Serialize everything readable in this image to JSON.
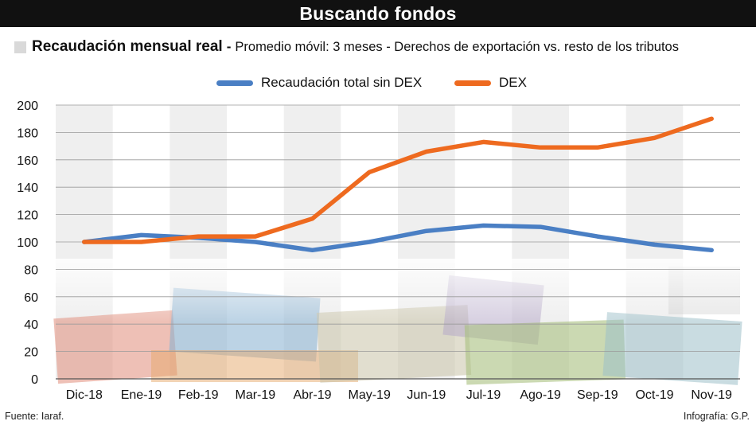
{
  "header": {
    "title": "Buscando fondos"
  },
  "subtitle": {
    "bold": "Recaudación mensual real",
    "separator": "-",
    "rest": "Promedio móvil: 3 meses - Derechos de exportación vs. resto de los tributos"
  },
  "footer": {
    "source": "Fuente: Iaraf.",
    "credit": "Infografía: G.P."
  },
  "colors": {
    "total_line": "#4a7fc4",
    "dex_line": "#ee6a1f",
    "column_shade": "#efefef",
    "grid": "#9a9a9a"
  },
  "chart_data": {
    "type": "line",
    "title": "Recaudación mensual real",
    "categories": [
      "Dic-18",
      "Ene-19",
      "Feb-19",
      "Mar-19",
      "Abr-19",
      "May-19",
      "Jun-19",
      "Jul-19",
      "Ago-19",
      "Sep-19",
      "Oct-19",
      "Nov-19"
    ],
    "series": [
      {
        "name": "Recaudación total sin DEX",
        "color": "#4a7fc4",
        "values": [
          100,
          105,
          103,
          100,
          94,
          100,
          108,
          112,
          111,
          104,
          98,
          94
        ]
      },
      {
        "name": "DEX",
        "color": "#ee6a1f",
        "values": [
          100,
          100,
          104,
          104,
          117,
          151,
          166,
          173,
          169,
          169,
          176,
          190
        ]
      }
    ],
    "ylim": [
      0,
      200
    ],
    "yticks": [
      0,
      20,
      40,
      60,
      80,
      100,
      120,
      140,
      160,
      180,
      200
    ],
    "grid": true,
    "legend_position": "top-center"
  }
}
